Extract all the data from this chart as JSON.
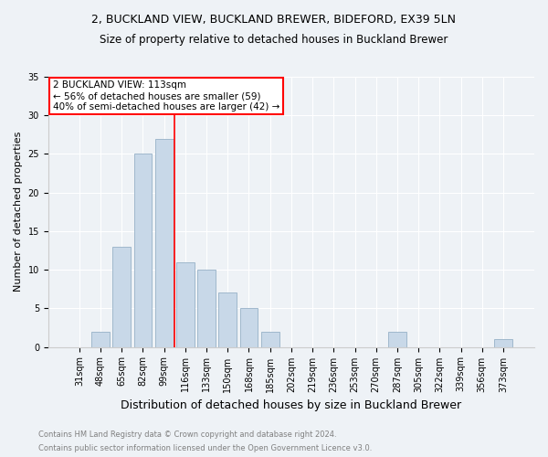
{
  "title_line1": "2, BUCKLAND VIEW, BUCKLAND BREWER, BIDEFORD, EX39 5LN",
  "title_line2": "Size of property relative to detached houses in Buckland Brewer",
  "xlabel": "Distribution of detached houses by size in Buckland Brewer",
  "ylabel": "Number of detached properties",
  "categories": [
    "31sqm",
    "48sqm",
    "65sqm",
    "82sqm",
    "99sqm",
    "116sqm",
    "133sqm",
    "150sqm",
    "168sqm",
    "185sqm",
    "202sqm",
    "219sqm",
    "236sqm",
    "253sqm",
    "270sqm",
    "287sqm",
    "305sqm",
    "322sqm",
    "339sqm",
    "356sqm",
    "373sqm"
  ],
  "values": [
    0,
    2,
    13,
    25,
    27,
    11,
    10,
    7,
    5,
    2,
    0,
    0,
    0,
    0,
    0,
    2,
    0,
    0,
    0,
    0,
    1
  ],
  "bar_color": "#c8d8e8",
  "bar_edgecolor": "#a0b8cc",
  "annotation_line1": "2 BUCKLAND VIEW: 113sqm",
  "annotation_line2": "← 56% of detached houses are smaller (59)",
  "annotation_line3": "40% of semi-detached houses are larger (42) →",
  "annotation_box_color": "white",
  "annotation_box_edgecolor": "red",
  "vline_color": "red",
  "vline_x_index": 4,
  "ylim": [
    0,
    35
  ],
  "yticks": [
    0,
    5,
    10,
    15,
    20,
    25,
    30,
    35
  ],
  "footnote1": "Contains HM Land Registry data © Crown copyright and database right 2024.",
  "footnote2": "Contains public sector information licensed under the Open Government Licence v3.0.",
  "bg_color": "#eef2f6",
  "plot_bg_color": "#eef2f6",
  "title_fontsize": 9,
  "subtitle_fontsize": 8.5,
  "xlabel_fontsize": 9,
  "ylabel_fontsize": 8,
  "tick_fontsize": 7,
  "annotation_fontsize": 7.5,
  "footnote_fontsize": 6
}
